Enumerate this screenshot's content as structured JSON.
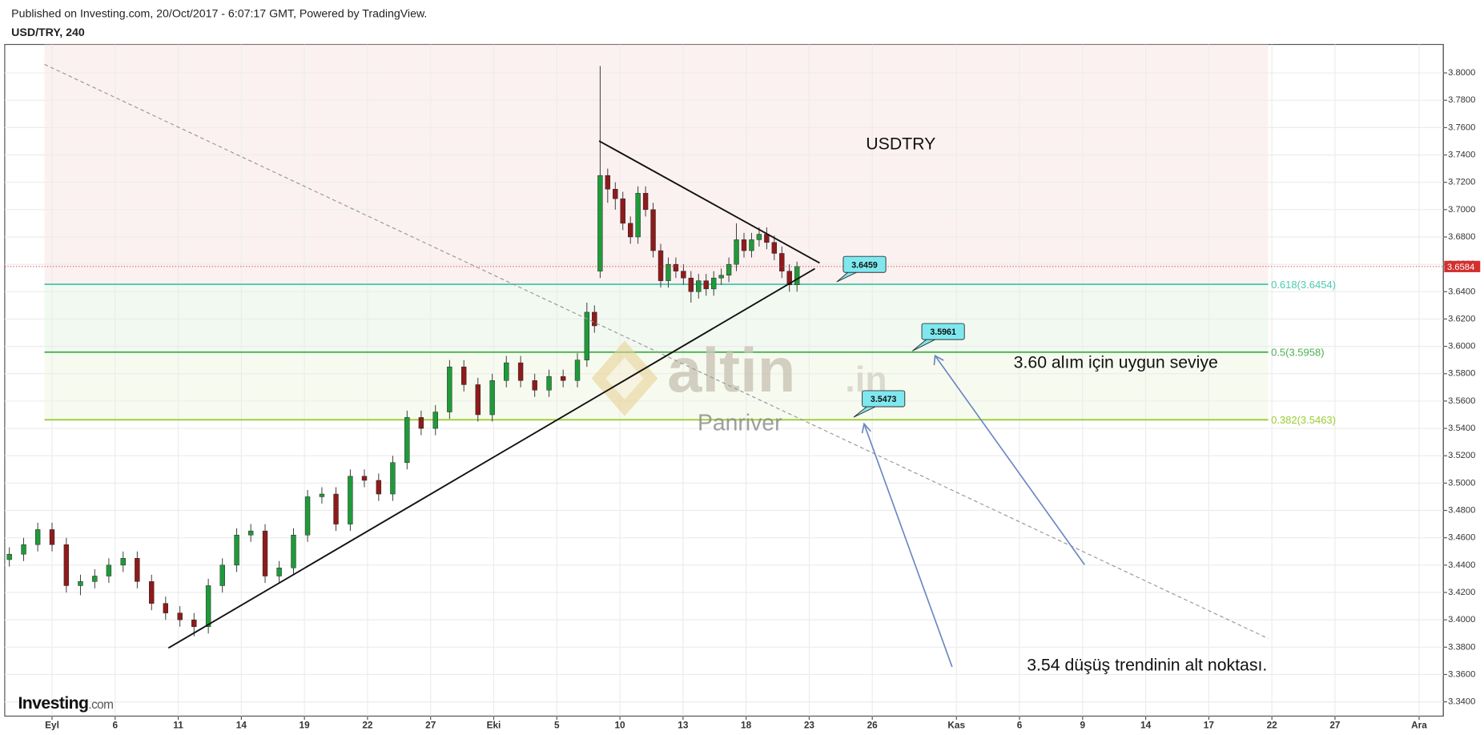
{
  "chart_data": {
    "type": "candlestick",
    "subtitle": "Published on Investing.com, 20/Oct/2017 - 6:07:17 GMT, Powered by TradingView.",
    "title": "USD/TRY, 240",
    "annotations": [
      "USDTRY",
      "3.60 alım için uygun seviye",
      "3.54 düşüş trendinin alt noktası."
    ],
    "watermark": {
      "brand": "altin",
      "suffix": ".in",
      "sub": "Panriver"
    },
    "logo": {
      "name": "Investing",
      "suffix": ".com"
    },
    "callouts": [
      3.6459,
      3.5961,
      3.5473
    ],
    "up_color": "#1f9a3a",
    "down_color": "#8e1b1b",
    "last_price_color": "#d32f2f",
    "top_zone_color": "#f9e4e4",
    "grid": true,
    "fib_levels": [
      {
        "value": 3.6454,
        "label": "0.618(3.6454)",
        "color": "#4ec9b0"
      },
      {
        "value": 3.5958,
        "label": "0.5(3.5958)",
        "color": "#4caf50"
      },
      {
        "value": 3.5463,
        "label": "0.382(3.5463)",
        "color": "#9acd32"
      }
    ],
    "xlim": [
      -2.25,
      66.15
    ],
    "xticks": [
      {
        "value": 0,
        "label": "Eyl"
      },
      {
        "value": 3,
        "label": "6"
      },
      {
        "value": 6,
        "label": "11"
      },
      {
        "value": 9,
        "label": "14"
      },
      {
        "value": 12,
        "label": "19"
      },
      {
        "value": 15,
        "label": "22"
      },
      {
        "value": 18,
        "label": "27"
      },
      {
        "value": 21,
        "label": "Eki"
      },
      {
        "value": 24,
        "label": "5"
      },
      {
        "value": 27,
        "label": "10"
      },
      {
        "value": 30,
        "label": "13"
      },
      {
        "value": 33,
        "label": "18"
      },
      {
        "value": 36,
        "label": "23"
      },
      {
        "value": 39,
        "label": "26"
      },
      {
        "value": 43,
        "label": "Kas"
      },
      {
        "value": 46,
        "label": "6"
      },
      {
        "value": 49,
        "label": "9"
      },
      {
        "value": 52,
        "label": "14"
      },
      {
        "value": 55,
        "label": "17"
      },
      {
        "value": 58,
        "label": "22"
      },
      {
        "value": 61,
        "label": "27"
      },
      {
        "value": 65,
        "label": "Ara"
      }
    ],
    "ylim": [
      3.3296,
      3.8208
    ],
    "yticks": [
      {
        "value": 3.34,
        "label": "3.3400"
      },
      {
        "value": 3.36,
        "label": "3.3600"
      },
      {
        "value": 3.38,
        "label": "3.3800"
      },
      {
        "value": 3.4,
        "label": "3.4000"
      },
      {
        "value": 3.42,
        "label": "3.4200"
      },
      {
        "value": 3.44,
        "label": "3.4400"
      },
      {
        "value": 3.46,
        "label": "3.4600"
      },
      {
        "value": 3.48,
        "label": "3.4800"
      },
      {
        "value": 3.5,
        "label": "3.5000"
      },
      {
        "value": 3.52,
        "label": "3.5200"
      },
      {
        "value": 3.54,
        "label": "3.5400"
      },
      {
        "value": 3.56,
        "label": "3.5600"
      },
      {
        "value": 3.58,
        "label": "3.5800"
      },
      {
        "value": 3.6,
        "label": "3.6000"
      },
      {
        "value": 3.62,
        "label": "3.6200"
      },
      {
        "value": 3.64,
        "label": "3.6400"
      },
      {
        "value": 3.66,
        "label": "3.6600"
      },
      {
        "value": 3.68,
        "label": "3.6800"
      },
      {
        "value": 3.7,
        "label": "3.7000"
      },
      {
        "value": 3.72,
        "label": "3.7200"
      },
      {
        "value": 3.74,
        "label": "3.7400"
      },
      {
        "value": 3.76,
        "label": "3.7600"
      },
      {
        "value": 3.78,
        "label": "3.7800"
      },
      {
        "value": 3.8,
        "label": "3.8000"
      }
    ],
    "x": [
      -2.03,
      -1.35,
      -0.68,
      0,
      0.68,
      1.35,
      2.03,
      2.7,
      3.38,
      4.05,
      4.73,
      5.4,
      6.08,
      6.75,
      7.43,
      8.1,
      8.78,
      9.45,
      10.13,
      10.8,
      11.48,
      12.15,
      12.83,
      13.5,
      14.18,
      14.85,
      15.53,
      16.2,
      16.88,
      17.55,
      18.23,
      18.9,
      19.58,
      20.25,
      20.93,
      21.6,
      22.28,
      22.95,
      23.63,
      24.3,
      24.98,
      25.43,
      25.79,
      26.06,
      26.42,
      26.78,
      27.14,
      27.5,
      27.86,
      28.22,
      28.58,
      28.94,
      29.3,
      29.66,
      30.02,
      30.38,
      30.74,
      31.1,
      31.46,
      31.82,
      32.18,
      32.54,
      32.9,
      33.26,
      33.62,
      33.98,
      34.34,
      34.7,
      35.06,
      35.42
    ],
    "open": [
      3.444,
      3.448,
      3.455,
      3.466,
      3.455,
      3.425,
      3.428,
      3.432,
      3.44,
      3.445,
      3.428,
      3.412,
      3.405,
      3.4,
      3.395,
      3.425,
      3.44,
      3.462,
      3.465,
      3.432,
      3.438,
      3.462,
      3.49,
      3.492,
      3.47,
      3.505,
      3.502,
      3.492,
      3.515,
      3.548,
      3.54,
      3.552,
      3.585,
      3.572,
      3.55,
      3.575,
      3.588,
      3.575,
      3.568,
      3.578,
      3.575,
      3.59,
      3.625,
      3.655,
      3.725,
      3.715,
      3.708,
      3.69,
      3.68,
      3.712,
      3.7,
      3.67,
      3.648,
      3.66,
      3.655,
      3.65,
      3.64,
      3.648,
      3.642,
      3.65,
      3.652,
      3.66,
      3.678,
      3.67,
      3.678,
      3.682,
      3.676,
      3.668,
      3.655,
      3.645
    ],
    "high": [
      3.453,
      3.46,
      3.471,
      3.471,
      3.46,
      3.433,
      3.437,
      3.445,
      3.45,
      3.45,
      3.433,
      3.417,
      3.41,
      3.405,
      3.43,
      3.445,
      3.467,
      3.47,
      3.47,
      3.443,
      3.467,
      3.495,
      3.497,
      3.497,
      3.51,
      3.51,
      3.507,
      3.52,
      3.553,
      3.553,
      3.557,
      3.59,
      3.59,
      3.577,
      3.58,
      3.593,
      3.593,
      3.58,
      3.583,
      3.583,
      3.595,
      3.632,
      3.63,
      3.805,
      3.73,
      3.72,
      3.713,
      3.695,
      3.717,
      3.717,
      3.705,
      3.675,
      3.665,
      3.665,
      3.66,
      3.655,
      3.653,
      3.653,
      3.655,
      3.657,
      3.665,
      3.69,
      3.683,
      3.683,
      3.687,
      3.687,
      3.681,
      3.673,
      3.66,
      3.662
    ],
    "low": [
      3.439,
      3.443,
      3.45,
      3.45,
      3.42,
      3.418,
      3.423,
      3.427,
      3.435,
      3.423,
      3.407,
      3.4,
      3.395,
      3.388,
      3.39,
      3.42,
      3.435,
      3.457,
      3.427,
      3.427,
      3.433,
      3.457,
      3.485,
      3.465,
      3.465,
      3.497,
      3.487,
      3.487,
      3.51,
      3.535,
      3.535,
      3.547,
      3.567,
      3.545,
      3.545,
      3.57,
      3.57,
      3.563,
      3.563,
      3.57,
      3.57,
      3.585,
      3.61,
      3.65,
      3.705,
      3.7,
      3.685,
      3.675,
      3.675,
      3.695,
      3.665,
      3.643,
      3.643,
      3.65,
      3.645,
      3.632,
      3.635,
      3.637,
      3.637,
      3.645,
      3.647,
      3.655,
      3.665,
      3.665,
      3.673,
      3.671,
      3.663,
      3.65,
      3.64,
      3.64
    ],
    "close": [
      3.448,
      3.455,
      3.466,
      3.455,
      3.425,
      3.428,
      3.432,
      3.44,
      3.445,
      3.428,
      3.412,
      3.405,
      3.4,
      3.395,
      3.425,
      3.44,
      3.462,
      3.465,
      3.432,
      3.438,
      3.462,
      3.49,
      3.492,
      3.47,
      3.505,
      3.502,
      3.492,
      3.515,
      3.548,
      3.54,
      3.552,
      3.585,
      3.572,
      3.55,
      3.575,
      3.588,
      3.575,
      3.568,
      3.578,
      3.575,
      3.59,
      3.625,
      3.615,
      3.725,
      3.715,
      3.708,
      3.69,
      3.68,
      3.712,
      3.7,
      3.67,
      3.648,
      3.66,
      3.655,
      3.65,
      3.64,
      3.648,
      3.642,
      3.65,
      3.652,
      3.66,
      3.678,
      3.67,
      3.678,
      3.682,
      3.676,
      3.668,
      3.655,
      3.645,
      3.6584
    ]
  }
}
